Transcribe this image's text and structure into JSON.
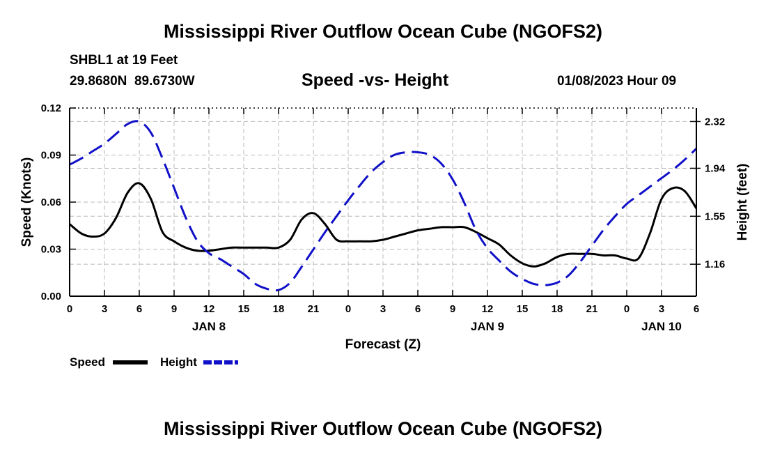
{
  "page": {
    "title_top": "Mississippi River Outflow Ocean Cube (NGOFS2)",
    "title_bottom": "Mississippi River Outflow Ocean Cube (NGOFS2)",
    "station_line": "SHBL1 at 19 Feet",
    "coords_line": "29.8680N  89.6730W",
    "subtitle": "Speed -vs- Height",
    "datetime": "01/08/2023 Hour 09"
  },
  "chart_data": {
    "type": "line",
    "title": "Speed -vs- Height",
    "xlabel": "Forecast (Z)",
    "ylabel_left": "Speed (Knots)",
    "ylabel_right": "Height (feet)",
    "x_range": [
      0,
      54
    ],
    "y_left_range": [
      0,
      0.12
    ],
    "y_right_range": [
      0.9,
      2.43
    ],
    "x_ticks": [
      0,
      3,
      6,
      9,
      12,
      15,
      18,
      21,
      24,
      27,
      30,
      33,
      36,
      39,
      42,
      45,
      48,
      51,
      54
    ],
    "x_tick_labels": [
      "0",
      "3",
      "6",
      "9",
      "12",
      "15",
      "18",
      "21",
      "0",
      "3",
      "6",
      "9",
      "12",
      "15",
      "18",
      "21",
      "0",
      "3",
      "6"
    ],
    "day_labels": [
      {
        "x": 12,
        "label": "JAN 8"
      },
      {
        "x": 36,
        "label": "JAN 9"
      },
      {
        "x": 51,
        "label": "JAN 10"
      }
    ],
    "y_left_ticks": [
      0.0,
      0.03,
      0.06,
      0.09,
      0.12
    ],
    "y_left_tick_labels": [
      "0.00",
      "0.03",
      "0.06",
      "0.09",
      "0.12"
    ],
    "y_right_ticks": [
      1.16,
      1.55,
      1.94,
      2.32
    ],
    "y_right_tick_labels": [
      "1.16",
      "1.55",
      "1.94",
      "2.32"
    ],
    "grid": true,
    "legend_position": "bottom-left",
    "series": [
      {
        "name": "Speed",
        "axis": "left",
        "color": "#000000",
        "style": "solid",
        "x": [
          0,
          1,
          2,
          3,
          4,
          5,
          6,
          7,
          8,
          9,
          10,
          11,
          12,
          13,
          14,
          15,
          16,
          17,
          18,
          19,
          20,
          21,
          22,
          23,
          24,
          25,
          26,
          27,
          28,
          29,
          30,
          31,
          32,
          33,
          34,
          35,
          36,
          37,
          38,
          39,
          40,
          41,
          42,
          43,
          44,
          45,
          46,
          47,
          48,
          49,
          50,
          51,
          52,
          53,
          54
        ],
        "values": [
          0.046,
          0.04,
          0.038,
          0.04,
          0.05,
          0.066,
          0.072,
          0.062,
          0.041,
          0.035,
          0.031,
          0.029,
          0.029,
          0.03,
          0.031,
          0.031,
          0.031,
          0.031,
          0.031,
          0.036,
          0.049,
          0.053,
          0.046,
          0.036,
          0.035,
          0.035,
          0.035,
          0.036,
          0.038,
          0.04,
          0.042,
          0.043,
          0.044,
          0.044,
          0.044,
          0.041,
          0.037,
          0.033,
          0.026,
          0.021,
          0.019,
          0.021,
          0.025,
          0.027,
          0.027,
          0.027,
          0.026,
          0.026,
          0.024,
          0.024,
          0.04,
          0.062,
          0.069,
          0.067,
          0.056
        ]
      },
      {
        "name": "Height",
        "axis": "right",
        "color": "#1010c8",
        "style": "dashed",
        "x": [
          0,
          1,
          2,
          3,
          4,
          5,
          6,
          7,
          8,
          9,
          10,
          11,
          12,
          13,
          14,
          15,
          16,
          17,
          18,
          19,
          20,
          21,
          22,
          23,
          24,
          25,
          26,
          27,
          28,
          29,
          30,
          31,
          32,
          33,
          34,
          35,
          36,
          37,
          38,
          39,
          40,
          41,
          42,
          43,
          44,
          45,
          46,
          47,
          48,
          49,
          50,
          51,
          52,
          53,
          54
        ],
        "values": [
          1.97,
          2.02,
          2.08,
          2.14,
          2.22,
          2.3,
          2.32,
          2.23,
          2.02,
          1.78,
          1.54,
          1.35,
          1.25,
          1.2,
          1.14,
          1.08,
          1.0,
          0.96,
          0.95,
          1.01,
          1.14,
          1.28,
          1.42,
          1.55,
          1.68,
          1.8,
          1.91,
          1.99,
          2.05,
          2.07,
          2.07,
          2.05,
          1.98,
          1.85,
          1.66,
          1.44,
          1.29,
          1.19,
          1.1,
          1.04,
          1.0,
          0.99,
          1.01,
          1.07,
          1.18,
          1.31,
          1.44,
          1.55,
          1.65,
          1.72,
          1.79,
          1.86,
          1.93,
          2.01,
          2.1
        ]
      }
    ]
  }
}
